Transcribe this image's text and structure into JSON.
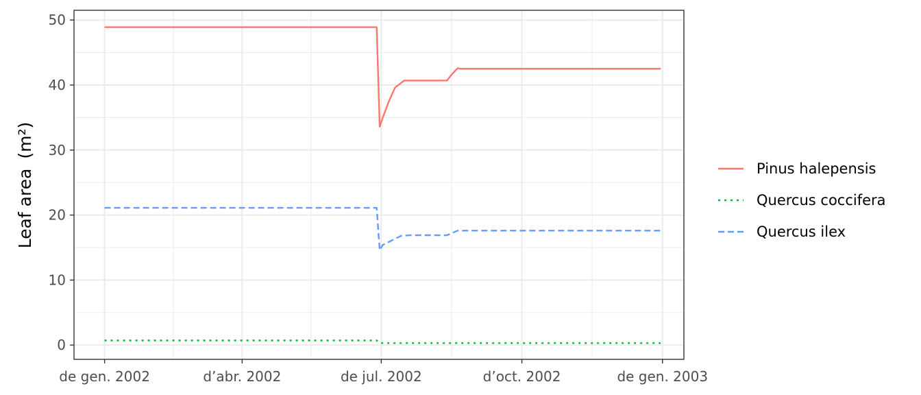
{
  "chart_data": {
    "type": "line",
    "title": "",
    "xlabel": "",
    "ylabel": "Leaf area",
    "ylabel_unit": "(m²)",
    "ylim": [
      -2.2,
      51.5
    ],
    "xlim": [
      "2001-12-12",
      "2003-01-15"
    ],
    "y_ticks": [
      0,
      10,
      20,
      30,
      40,
      50
    ],
    "x_ticks": [
      {
        "date": "2002-01-01",
        "label": "de gen. 2002"
      },
      {
        "date": "2002-04-01",
        "label": "d’abr. 2002"
      },
      {
        "date": "2002-07-01",
        "label": "de jul. 2002"
      },
      {
        "date": "2002-10-01",
        "label": "d’oct. 2002"
      },
      {
        "date": "2003-01-01",
        "label": "de gen. 2003"
      }
    ],
    "x_minor_ticks": [
      "2002-02-15",
      "2002-05-16",
      "2002-08-16",
      "2002-11-16"
    ],
    "y_minor_ticks": [
      5,
      15,
      25,
      35,
      45
    ],
    "grid": true,
    "legend_position": "right",
    "series": [
      {
        "name": "Pinus halepensis",
        "color": "#F8766D",
        "dash": "solid",
        "points": [
          [
            "2002-01-01",
            48.9
          ],
          [
            "2002-06-28",
            48.9
          ],
          [
            "2002-06-30",
            33.6
          ],
          [
            "2002-07-02",
            35.0
          ],
          [
            "2002-07-06",
            37.5
          ],
          [
            "2002-07-10",
            39.6
          ],
          [
            "2002-07-16",
            40.7
          ],
          [
            "2002-07-20",
            40.7
          ],
          [
            "2002-08-13",
            40.7
          ],
          [
            "2002-08-16",
            41.6
          ],
          [
            "2002-08-20",
            42.6
          ],
          [
            "2002-08-22",
            42.5
          ],
          [
            "2002-12-31",
            42.5
          ]
        ]
      },
      {
        "name": "Quercus coccifera",
        "color": "#00BA38",
        "dash": "dotted",
        "points": [
          [
            "2002-01-01",
            0.7
          ],
          [
            "2002-06-28",
            0.7
          ],
          [
            "2002-06-30",
            0.3
          ],
          [
            "2002-12-31",
            0.3
          ]
        ]
      },
      {
        "name": "Quercus ilex",
        "color": "#619CFF",
        "dash": "dashed",
        "points": [
          [
            "2002-01-01",
            21.1
          ],
          [
            "2002-06-28",
            21.1
          ],
          [
            "2002-06-30",
            14.6
          ],
          [
            "2002-07-02",
            15.4
          ],
          [
            "2002-07-08",
            16.1
          ],
          [
            "2002-07-14",
            16.8
          ],
          [
            "2002-07-20",
            16.9
          ],
          [
            "2002-08-13",
            16.9
          ],
          [
            "2002-08-20",
            17.6
          ],
          [
            "2002-12-31",
            17.6
          ]
        ]
      }
    ]
  }
}
